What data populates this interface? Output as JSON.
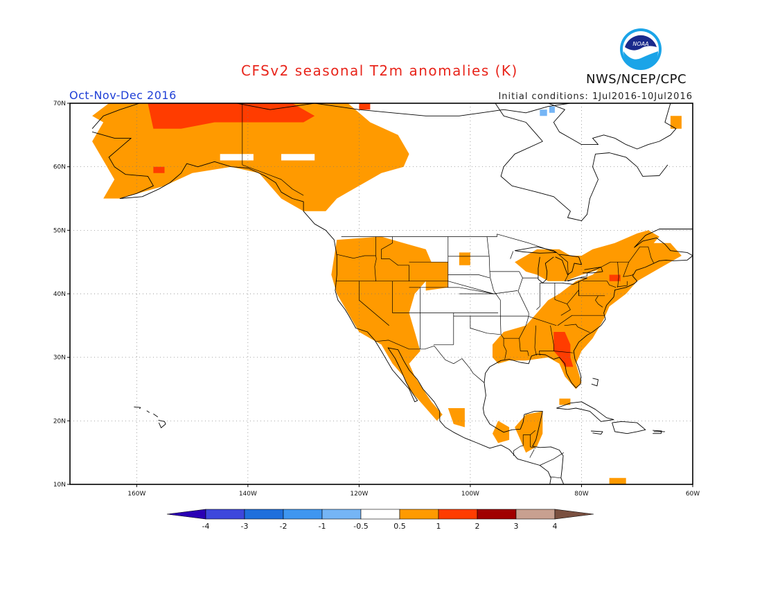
{
  "header": {
    "title": "CFSv2 seasonal T2m anomalies (K)",
    "season": "Oct-Nov-Dec 2016",
    "initial_conditions": "Initial conditions: 1Jul2016-10Jul2016",
    "agency": "NWS/NCEP/CPC",
    "logo_text": "NOAA"
  },
  "map": {
    "projection": "lat-lon",
    "lon_range": [
      -172,
      -60
    ],
    "lat_range": [
      10,
      70
    ],
    "lon_ticks": [
      "160W",
      "140W",
      "120W",
      "100W",
      "80W",
      "60W"
    ],
    "lat_ticks": [
      "10N",
      "20N",
      "30N",
      "40N",
      "50N",
      "60N",
      "70N"
    ],
    "gridlines": "dotted",
    "colors": {
      "anom_0_5_1": "#ff9a00",
      "anom_1_2": "#ff3c00",
      "anom_neg_1_0_5": "#75b5f5",
      "coast": "#000000"
    }
  },
  "colorbar": {
    "labels": [
      "-4",
      "-3",
      "-2",
      "-1",
      "-0.5",
      "0.5",
      "1",
      "2",
      "3",
      "4"
    ],
    "colors": [
      "#2a00b4",
      "#3d47dc",
      "#1f6fdc",
      "#3f96f0",
      "#75b5f5",
      "#ffffff",
      "#ff9a00",
      "#ff3c00",
      "#a00000",
      "#c8a090",
      "#7a5040"
    ]
  }
}
